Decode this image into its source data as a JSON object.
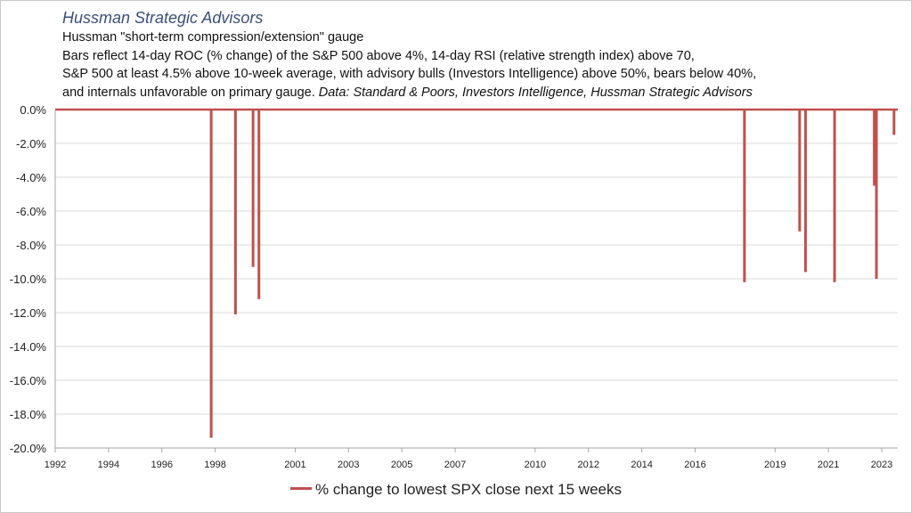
{
  "header": {
    "title": "Hussman Strategic Advisors",
    "line1": "Hussman \"short-term compression/extension\" gauge",
    "line2": "Bars reflect 14-day ROC (% change) of the S&P 500 above 4%, 14-day RSI (relative strength index) above 70,",
    "line3": "S&P 500 at least 4.5% above 10-week average, with advisory bulls (Investors Intelligence) above 50%, bears below 40%,",
    "line4_plain": "and internals unfavorable on primary gauge. ",
    "line4_italic": "Data: Standard & Poors, Investors Intelligence, Hussman Strategic Advisors"
  },
  "colors": {
    "bar": "#c0504d",
    "title": "#3a4f7a",
    "grid": "#d9d9d9",
    "axis": "#a6a6a6"
  },
  "chart_data": {
    "type": "bar",
    "xlim": [
      1992,
      2023.6
    ],
    "ylim": [
      -20,
      0
    ],
    "x_ticks": [
      1992,
      1994,
      1996,
      1998,
      2001,
      2003,
      2005,
      2007,
      2010,
      2012,
      2014,
      2016,
      2019,
      2021,
      2023
    ],
    "x_tick_labels": [
      "1992",
      "1994",
      "1996",
      "1998",
      "2001",
      "2003",
      "2005",
      "2007",
      "2010",
      "2012",
      "2014",
      "2016",
      "2019",
      "2021",
      "2023"
    ],
    "y_ticks": [
      0,
      -2,
      -4,
      -6,
      -8,
      -10,
      -12,
      -14,
      -16,
      -18,
      -20
    ],
    "y_tick_labels": [
      "0.0%",
      "-2.0%",
      "-4.0%",
      "-6.0%",
      "-8.0%",
      "-10.0%",
      "-12.0%",
      "-14.0%",
      "-16.0%",
      "-18.0%",
      "-20.0%"
    ],
    "grid": true,
    "legend_position": "bottom",
    "series": [
      {
        "name": "% change to lowest SPX close next 15 weeks",
        "points": [
          {
            "x": 1997.85,
            "y": -19.4
          },
          {
            "x": 1998.76,
            "y": -12.1
          },
          {
            "x": 1999.42,
            "y": -9.3
          },
          {
            "x": 1999.64,
            "y": -11.2
          },
          {
            "x": 2017.85,
            "y": -10.2
          },
          {
            "x": 2019.92,
            "y": -7.2
          },
          {
            "x": 2020.14,
            "y": -9.6
          },
          {
            "x": 2021.23,
            "y": -10.2
          },
          {
            "x": 2022.72,
            "y": -4.5
          },
          {
            "x": 2022.8,
            "y": -10.0
          },
          {
            "x": 2023.46,
            "y": -1.5
          }
        ]
      }
    ]
  },
  "legend": {
    "label": "% change to lowest SPX close next 15 weeks"
  }
}
